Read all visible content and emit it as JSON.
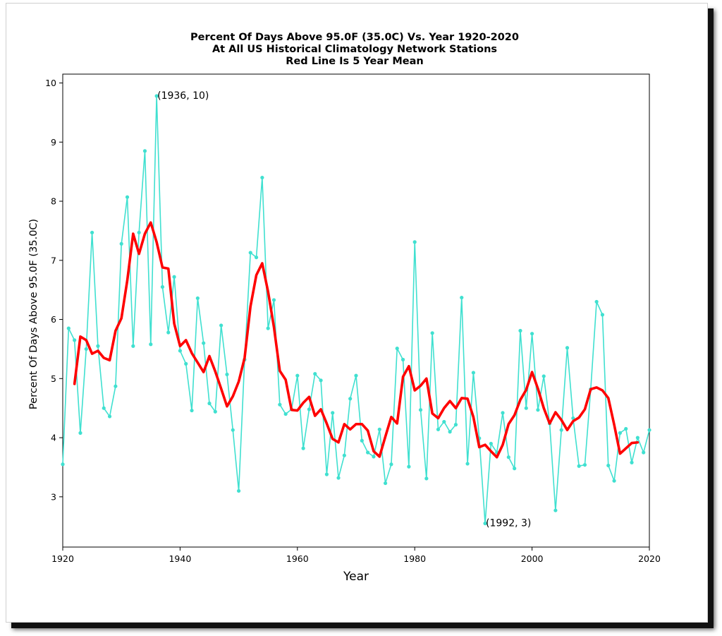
{
  "chart_data": {
    "type": "line",
    "title_lines": [
      "Percent Of Days Above 95.0F (35.0C) Vs. Year 1920-2020",
      "At All US Historical Climatology Network Stations",
      "Red Line Is 5 Year Mean"
    ],
    "xlabel": "Year",
    "ylabel": "Percent Of Days Above 95.0F (35.0C)",
    "xlim": [
      1920,
      2020
    ],
    "ylim": [
      2.15,
      10.15
    ],
    "xticks": [
      "1920",
      "1940",
      "1960",
      "1980",
      "2000",
      "2020"
    ],
    "yticks": [
      "3",
      "4",
      "5",
      "6",
      "7",
      "8",
      "9",
      "10"
    ],
    "grid": false,
    "legend": "none",
    "annotations": [
      {
        "text": "(1936, 10)",
        "x": 1936,
        "y": 9.78
      },
      {
        "text": "(1992, 3)",
        "x": 1992,
        "y": 2.55
      }
    ],
    "series": [
      {
        "color": "#40e0d0",
        "marker": "dot",
        "x": [
          1920,
          1921,
          1922,
          1923,
          1924,
          1925,
          1926,
          1927,
          1928,
          1929,
          1930,
          1931,
          1932,
          1933,
          1934,
          1935,
          1936,
          1937,
          1938,
          1939,
          1940,
          1941,
          1942,
          1943,
          1944,
          1945,
          1946,
          1947,
          1948,
          1949,
          1950,
          1951,
          1952,
          1953,
          1954,
          1955,
          1956,
          1957,
          1958,
          1959,
          1960,
          1961,
          1962,
          1963,
          1964,
          1965,
          1966,
          1967,
          1968,
          1969,
          1970,
          1971,
          1972,
          1973,
          1974,
          1975,
          1976,
          1977,
          1978,
          1979,
          1980,
          1981,
          1982,
          1983,
          1984,
          1985,
          1986,
          1987,
          1988,
          1989,
          1990,
          1991,
          1992,
          1993,
          1994,
          1995,
          1996,
          1997,
          1998,
          1999,
          2000,
          2001,
          2002,
          2003,
          2004,
          2005,
          2006,
          2007,
          2008,
          2009,
          2010,
          2011,
          2012,
          2013,
          2014,
          2015,
          2016,
          2017,
          2018,
          2019,
          2020
        ],
        "values": [
          3.55,
          5.85,
          5.65,
          4.08,
          5.5,
          7.47,
          5.55,
          4.5,
          4.36,
          4.87,
          7.28,
          8.07,
          5.55,
          7.47,
          8.85,
          5.58,
          9.78,
          6.55,
          5.78,
          6.72,
          5.47,
          5.25,
          4.46,
          6.36,
          5.6,
          4.58,
          4.44,
          5.9,
          5.07,
          4.13,
          3.1,
          5.32,
          7.13,
          7.05,
          8.4,
          5.85,
          6.33,
          4.56,
          4.4,
          4.48,
          5.05,
          3.82,
          4.48,
          5.08,
          4.97,
          3.38,
          4.42,
          3.32,
          3.7,
          4.66,
          5.05,
          3.95,
          3.75,
          3.68,
          4.14,
          3.23,
          3.55,
          5.51,
          5.32,
          3.51,
          7.31,
          4.47,
          3.31,
          5.77,
          4.14,
          4.27,
          4.1,
          4.22,
          6.37,
          3.56,
          5.1,
          3.99,
          2.55,
          3.9,
          3.75,
          4.42,
          3.67,
          3.48,
          5.81,
          4.5,
          5.76,
          4.47,
          5.04,
          4.24,
          2.77,
          4.13,
          5.52,
          4.33,
          3.52,
          3.54,
          4.82,
          6.3,
          6.08,
          3.53,
          3.27,
          4.08,
          4.15,
          3.58,
          4.0,
          3.75,
          4.13
        ]
      },
      {
        "name": "5 Year Mean",
        "color": "#ff0000",
        "x": [
          1922,
          1923,
          1924,
          1925,
          1926,
          1927,
          1928,
          1929,
          1930,
          1931,
          1932,
          1933,
          1934,
          1935,
          1936,
          1937,
          1938,
          1939,
          1940,
          1941,
          1942,
          1943,
          1944,
          1945,
          1946,
          1947,
          1948,
          1949,
          1950,
          1951,
          1952,
          1953,
          1954,
          1955,
          1956,
          1957,
          1958,
          1959,
          1960,
          1961,
          1962,
          1963,
          1964,
          1965,
          1966,
          1967,
          1968,
          1969,
          1970,
          1971,
          1972,
          1973,
          1974,
          1975,
          1976,
          1977,
          1978,
          1979,
          1980,
          1981,
          1982,
          1983,
          1984,
          1985,
          1986,
          1987,
          1988,
          1989,
          1990,
          1991,
          1992,
          1993,
          1994,
          1995,
          1996,
          1997,
          1998,
          1999,
          2000,
          2001,
          2002,
          2003,
          2004,
          2005,
          2006,
          2007,
          2008,
          2009,
          2010,
          2011,
          2012,
          2013,
          2014,
          2015,
          2016,
          2017,
          2018
        ],
        "values": [
          4.91,
          5.71,
          5.65,
          5.42,
          5.47,
          5.35,
          5.31,
          5.81,
          6.02,
          6.66,
          7.45,
          7.11,
          7.45,
          7.64,
          7.31,
          6.88,
          6.86,
          5.93,
          5.55,
          5.65,
          5.43,
          5.27,
          5.11,
          5.38,
          5.12,
          4.83,
          4.53,
          4.7,
          4.95,
          5.35,
          6.22,
          6.75,
          6.95,
          6.47,
          5.87,
          5.13,
          4.98,
          4.47,
          4.46,
          4.59,
          4.69,
          4.37,
          4.48,
          4.24,
          3.98,
          3.92,
          4.23,
          4.14,
          4.23,
          4.23,
          4.12,
          3.77,
          3.68,
          4.02,
          4.35,
          4.24,
          5.03,
          5.21,
          4.8,
          4.88,
          5.0,
          4.41,
          4.33,
          4.5,
          4.62,
          4.5,
          4.67,
          4.66,
          4.35,
          3.84,
          3.88,
          3.77,
          3.67,
          3.88,
          4.23,
          4.38,
          4.64,
          4.81,
          5.11,
          4.83,
          4.5,
          4.24,
          4.43,
          4.3,
          4.13,
          4.28,
          4.34,
          4.48,
          4.82,
          4.85,
          4.8,
          4.67,
          4.22,
          3.73,
          3.82,
          3.91,
          3.92
        ]
      }
    ]
  }
}
